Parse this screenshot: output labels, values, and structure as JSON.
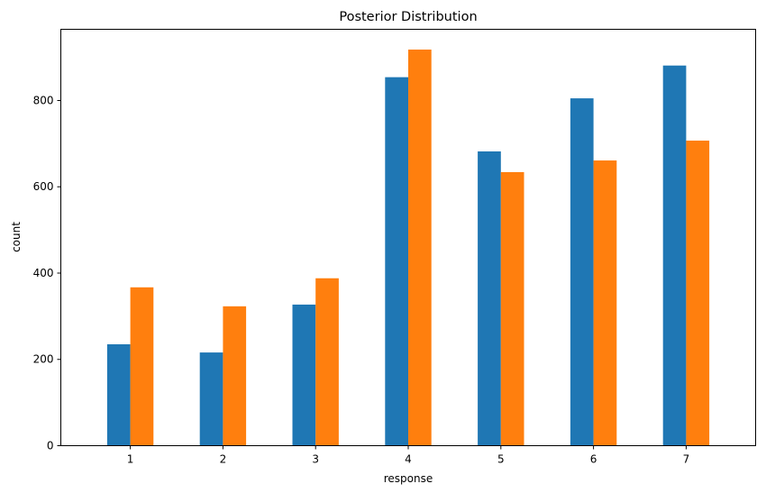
{
  "chart_data": {
    "type": "bar",
    "title": "Posterior Distribution",
    "xlabel": "response",
    "ylabel": "count",
    "categories": [
      "1",
      "2",
      "3",
      "4",
      "5",
      "6",
      "7"
    ],
    "series": [
      {
        "values": [
          235,
          216,
          327,
          854,
          682,
          805,
          881
        ],
        "color": "#1f77b4"
      },
      {
        "values": [
          367,
          323,
          388,
          918,
          634,
          661,
          707
        ],
        "color": "#ff7f0e"
      }
    ],
    "yticks": [
      0,
      200,
      400,
      600,
      800
    ],
    "ylim": [
      0,
      965
    ],
    "grid": false,
    "legend": "none"
  }
}
